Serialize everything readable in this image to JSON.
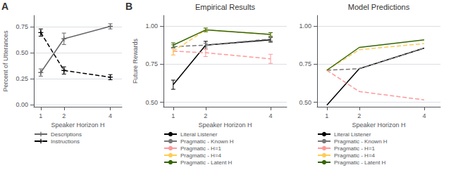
{
  "chart_data": [
    {
      "type": "line",
      "annotation": "A",
      "xlabel": "Speaker Horizon H",
      "ylabel": "Percent of Utterances",
      "x": [
        1,
        2,
        4
      ],
      "xlim": [
        0.7,
        4.5
      ],
      "xticks": [
        1,
        2,
        4
      ],
      "ylim": [
        -0.02,
        0.86
      ],
      "yticks": [
        {
          "value": 0.0,
          "label": "0.00"
        },
        0.25,
        {
          "value": 0.5,
          "label": "0.50"
        },
        0.75
      ],
      "grid": true,
      "legend": "bottom",
      "series": [
        {
          "name": "Descriptions",
          "color": "#666666",
          "line_style": "solid",
          "marker": "+",
          "values": [
            0.31,
            0.635,
            0.755
          ],
          "errors": [
            0.035,
            0.055,
            0.025
          ]
        },
        {
          "name": "Instructions",
          "color": "#000000",
          "line_style": "dashed",
          "marker": "+",
          "values": [
            0.695,
            0.33,
            0.265
          ],
          "errors": [
            0.035,
            0.035,
            0.025
          ]
        }
      ]
    },
    {
      "type": "line",
      "annotation": "B",
      "title": "Empirical Results",
      "xlabel": "Speaker Horizon H",
      "ylabel": "Future Rewards",
      "x": [
        1,
        2,
        4
      ],
      "xlim": [
        0.7,
        4.5
      ],
      "xticks": [
        1,
        2,
        4
      ],
      "ylim": [
        0.47,
        1.07
      ],
      "yticks": [
        {
          "value": 0.5,
          "label": "0.50"
        },
        0.75,
        {
          "value": 1.0,
          "label": "1.00"
        }
      ],
      "grid": true,
      "legend": "bottom",
      "series": [
        {
          "name": "Literal Listener",
          "color": "#000000",
          "line_style": "solid",
          "values": [
            0.615,
            0.875,
            0.91
          ],
          "errors": [
            0.03,
            0.025,
            0.015
          ]
        },
        {
          "name": "Pragmatic - Known H",
          "color": "#777777",
          "line_style": "dashed",
          "values": [
            0.865,
            0.875,
            0.915
          ],
          "errors": [
            0.012,
            0.012,
            0.012
          ]
        },
        {
          "name": "Pragmatic - H=1",
          "color": "#FF9999",
          "line_style": "dashed",
          "values": [
            0.835,
            0.825,
            0.785
          ],
          "errors": [
            0.025,
            0.025,
            0.03
          ]
        },
        {
          "name": "Pragmatic - H=4",
          "color": "#FFCC55",
          "line_style": "dashed",
          "values": [
            0.835,
            0.975,
            0.945
          ],
          "errors": [
            0.025,
            0.012,
            0.012
          ]
        },
        {
          "name": "Pragmatic - Latent H",
          "color": "#336600",
          "line_style": "solid",
          "values": [
            0.875,
            0.975,
            0.945
          ],
          "errors": [
            0.015,
            0.012,
            0.012
          ]
        }
      ]
    },
    {
      "type": "line",
      "title": "Model Predictions",
      "xlabel": "Speaker Horizon H",
      "x": [
        1,
        2,
        4
      ],
      "xlim": [
        0.7,
        4.5
      ],
      "xticks": [
        1,
        2,
        4
      ],
      "ylim": [
        0.47,
        1.07
      ],
      "yticks": [
        {
          "value": 0.5,
          "label": "0.50"
        },
        0.75,
        {
          "value": 1.0,
          "label": "1.00"
        }
      ],
      "grid": true,
      "legend": "bottom",
      "series": [
        {
          "name": "Literal Listener",
          "color": "#000000",
          "line_style": "solid",
          "values": [
            0.48,
            0.72,
            0.855
          ]
        },
        {
          "name": "Pragmatic - Known H",
          "color": "#777777",
          "line_style": "dashed",
          "values": [
            0.71,
            0.72,
            0.855
          ]
        },
        {
          "name": "Pragmatic - H=1",
          "color": "#FF9999",
          "line_style": "dashed",
          "values": [
            0.71,
            0.57,
            0.515
          ]
        },
        {
          "name": "Pragmatic - H=4",
          "color": "#FFCC55",
          "line_style": "dashed",
          "values": [
            0.71,
            0.845,
            0.885
          ]
        },
        {
          "name": "Pragmatic - Latent H",
          "color": "#336600",
          "line_style": "solid",
          "values": [
            0.71,
            0.86,
            0.91
          ]
        }
      ]
    }
  ]
}
